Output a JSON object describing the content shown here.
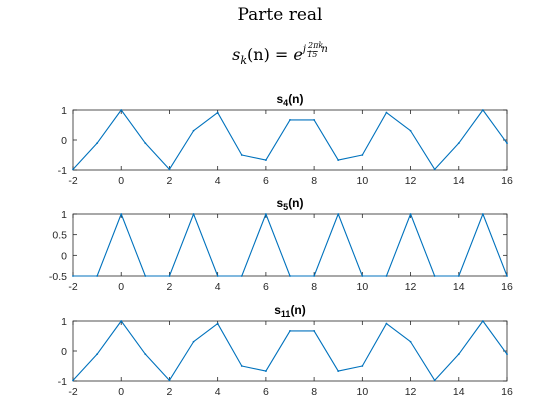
{
  "figure": {
    "title": "Parte real",
    "formula": {
      "lhs": "s",
      "lhs_sub": "k",
      "lhs_arg": "(n) = ",
      "base": "e",
      "exp_j": "j",
      "exp_num": "2πk",
      "exp_den": "15",
      "exp_n": "n"
    }
  },
  "chart_data": [
    {
      "type": "line",
      "title": "s",
      "title_sub": "4",
      "title_suffix": "(n)",
      "x": [
        -2,
        -1,
        0,
        1,
        2,
        3,
        4,
        5,
        6,
        7,
        8,
        9,
        10,
        11,
        12,
        13,
        14,
        15,
        16
      ],
      "series": [
        {
          "color": "#0072BD",
          "values": [
            -0.978,
            -0.105,
            1.0,
            -0.105,
            -0.978,
            0.309,
            0.914,
            -0.5,
            -0.669,
            0.669,
            0.669,
            -0.669,
            -0.5,
            0.914,
            0.309,
            -0.978,
            -0.105,
            1.0,
            -0.105
          ]
        }
      ],
      "xlim": [
        -2,
        16
      ],
      "ylim": [
        -1,
        1
      ],
      "xticks": [
        "-2",
        "0",
        "2",
        "4",
        "6",
        "8",
        "10",
        "12",
        "14",
        "16"
      ],
      "xtick_values": [
        -2,
        0,
        2,
        4,
        6,
        8,
        10,
        12,
        14,
        16
      ],
      "yticks": [
        "-1",
        "0",
        "1"
      ],
      "ytick_values": [
        -1,
        0,
        1
      ],
      "grid": false
    },
    {
      "type": "line",
      "title": "s",
      "title_sub": "5",
      "title_suffix": "(n)",
      "x": [
        -2,
        -1,
        0,
        1,
        2,
        3,
        4,
        5,
        6,
        7,
        8,
        9,
        10,
        11,
        12,
        13,
        14,
        15,
        16
      ],
      "series": [
        {
          "color": "#0072BD",
          "values": [
            -0.5,
            -0.5,
            1.0,
            -0.5,
            -0.5,
            1.0,
            -0.5,
            -0.5,
            1.0,
            -0.5,
            -0.5,
            1.0,
            -0.5,
            -0.5,
            1.0,
            -0.5,
            -0.5,
            1.0,
            -0.5
          ]
        }
      ],
      "xlim": [
        -2,
        16
      ],
      "ylim": [
        -0.5,
        1
      ],
      "xticks": [
        "-2",
        "0",
        "2",
        "4",
        "6",
        "8",
        "10",
        "12",
        "14",
        "16"
      ],
      "xtick_values": [
        -2,
        0,
        2,
        4,
        6,
        8,
        10,
        12,
        14,
        16
      ],
      "yticks": [
        "-0.5",
        "0",
        "0.5",
        "1"
      ],
      "ytick_values": [
        -0.5,
        0,
        0.5,
        1
      ],
      "grid": false
    },
    {
      "type": "line",
      "title": "s",
      "title_sub": "11",
      "title_suffix": "(n)",
      "x": [
        -2,
        -1,
        0,
        1,
        2,
        3,
        4,
        5,
        6,
        7,
        8,
        9,
        10,
        11,
        12,
        13,
        14,
        15,
        16
      ],
      "series": [
        {
          "color": "#0072BD",
          "values": [
            -0.978,
            -0.105,
            1.0,
            -0.105,
            -0.978,
            0.309,
            0.914,
            -0.5,
            -0.669,
            0.669,
            0.669,
            -0.669,
            -0.5,
            0.914,
            0.309,
            -0.978,
            -0.105,
            1.0,
            -0.105
          ]
        }
      ],
      "xlim": [
        -2,
        16
      ],
      "ylim": [
        -1,
        1
      ],
      "xticks": [
        "-2",
        "0",
        "2",
        "4",
        "6",
        "8",
        "10",
        "12",
        "14",
        "16"
      ],
      "xtick_values": [
        -2,
        0,
        2,
        4,
        6,
        8,
        10,
        12,
        14,
        16
      ],
      "yticks": [
        "-1",
        "0",
        "1"
      ],
      "ytick_values": [
        -1,
        0,
        1
      ],
      "grid": false
    }
  ]
}
